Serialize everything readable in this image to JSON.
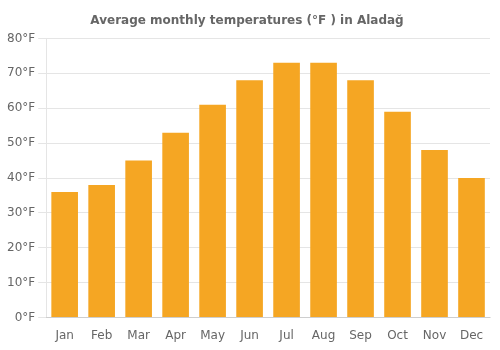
{
  "chart_data": {
    "type": "bar",
    "title": "Average monthly temperatures (°F ) in Aladağ",
    "categories": [
      "Jan",
      "Feb",
      "Mar",
      "Apr",
      "May",
      "Jun",
      "Jul",
      "Aug",
      "Sep",
      "Oct",
      "Nov",
      "Dec"
    ],
    "values": [
      36,
      38,
      45,
      53,
      61,
      68,
      73,
      73,
      68,
      59,
      48,
      40
    ],
    "color": "#F5A623",
    "ylim": [
      0,
      80
    ],
    "yticks": [
      {
        "value": 0,
        "label": "0°F"
      },
      {
        "value": 10,
        "label": "10°F"
      },
      {
        "value": 20,
        "label": "20°F"
      },
      {
        "value": 30,
        "label": "30°F"
      },
      {
        "value": 40,
        "label": "40°F"
      },
      {
        "value": 50,
        "label": "50°F"
      },
      {
        "value": 60,
        "label": "60°F"
      },
      {
        "value": 70,
        "label": "70°F"
      },
      {
        "value": 80,
        "label": "80°F"
      }
    ],
    "grid": true
  }
}
